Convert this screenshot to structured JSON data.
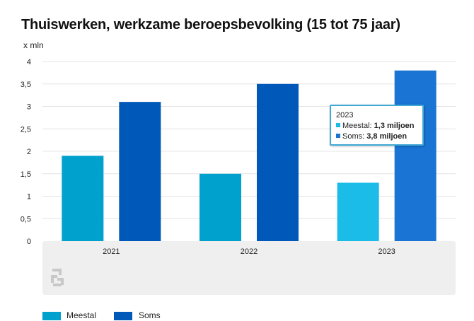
{
  "chart_data": {
    "type": "bar",
    "title": "Thuiswerken, werkzame beroepsbevolking (15 tot 75 jaar)",
    "ylabel": "x mln",
    "categories": [
      "2021",
      "2022",
      "2023"
    ],
    "series": [
      {
        "name": "Meestal",
        "values": [
          1.9,
          1.5,
          1.3
        ],
        "color": "#00a1cd",
        "highlight_color": "#1bbce8"
      },
      {
        "name": "Soms",
        "values": [
          3.1,
          3.5,
          3.8
        ],
        "color": "#0058b8",
        "highlight_color": "#1a74d4"
      }
    ],
    "yticks": [
      "0",
      "0,5",
      "1",
      "1,5",
      "2",
      "2,5",
      "3",
      "3,5",
      "4"
    ],
    "ylim": [
      0,
      4
    ],
    "grid": true,
    "legend": "bottom-left",
    "highlighted_category": "2023",
    "tooltip": {
      "title": "2023",
      "lines": [
        {
          "label": "Meestal:",
          "value": "1,3 miljoen"
        },
        {
          "label": "Soms:",
          "value": "3,8 miljoen"
        }
      ]
    }
  },
  "logo": {
    "icon": "cbs-logo-icon",
    "color": "#c8c8c8"
  }
}
